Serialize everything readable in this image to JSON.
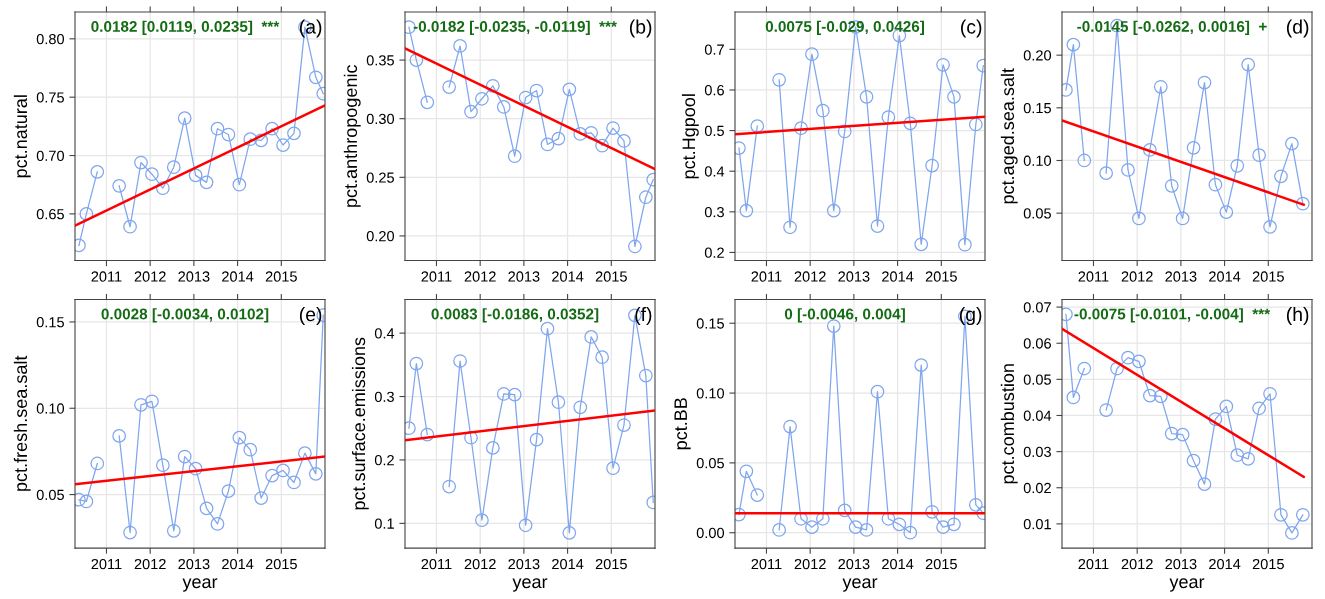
{
  "chart_data": [
    {
      "type": "line",
      "ylabel": "pct.natural",
      "x": [
        2010.37,
        2010.54,
        2010.79,
        2011.04,
        2011.29,
        2011.54,
        2011.79,
        2012.04,
        2012.29,
        2012.54,
        2012.79,
        2013.04,
        2013.29,
        2013.54,
        2013.79,
        2014.04,
        2014.29,
        2014.54,
        2014.79,
        2015.04,
        2015.29,
        2015.54,
        2015.79,
        2015.96
      ],
      "xlim": [
        2010.28,
        2016.0
      ],
      "xticks": [
        2011,
        2012,
        2013,
        2014,
        2015
      ],
      "ylim": [
        0.61,
        0.823
      ],
      "yticks": [
        {
          "value": 0.65,
          "label": "0.65"
        },
        {
          "value": 0.7,
          "label": "0.70"
        },
        {
          "value": 0.75,
          "label": "0.75"
        },
        {
          "value": 0.8,
          "label": "0.80"
        }
      ],
      "grid": true,
      "tick_labels": "y_and_x",
      "annotations": [
        "0.0182 [0.0119, 0.0235]  ***",
        "(a)"
      ],
      "series": [
        {
          "color": "#7fa6ee",
          "marker": "circle",
          "values": [
            0.623,
            0.65,
            0.686,
            null,
            0.674,
            0.639,
            0.694,
            0.684,
            0.672,
            0.69,
            0.732,
            0.683,
            0.677,
            0.723,
            0.718,
            0.675,
            0.714,
            0.713,
            0.723,
            0.709,
            0.719,
            0.81,
            0.767,
            0.753
          ]
        },
        {
          "color": "#ff0000",
          "x": [
            2010.28,
            2016.0
          ],
          "values": [
            0.64,
            0.743
          ]
        }
      ]
    },
    {
      "type": "line",
      "ylabel": "pct.anthropogenic",
      "x": [
        2010.37,
        2010.54,
        2010.79,
        2011.04,
        2011.29,
        2011.54,
        2011.79,
        2012.04,
        2012.29,
        2012.54,
        2012.79,
        2013.04,
        2013.29,
        2013.54,
        2013.79,
        2014.04,
        2014.29,
        2014.54,
        2014.79,
        2015.04,
        2015.29,
        2015.54,
        2015.79,
        2015.96
      ],
      "xlim": [
        2010.28,
        2016.0
      ],
      "xticks": [
        2011,
        2012,
        2013,
        2014,
        2015
      ],
      "ylim": [
        0.179,
        0.391
      ],
      "yticks": [
        {
          "value": 0.2,
          "label": "0.20"
        },
        {
          "value": 0.25,
          "label": "0.25"
        },
        {
          "value": 0.3,
          "label": "0.30"
        },
        {
          "value": 0.35,
          "label": "0.35"
        }
      ],
      "grid": true,
      "annotations": [
        "-0.0182 [-0.0235, -0.0119]  ***",
        "(b)"
      ],
      "series": [
        {
          "color": "#7fa6ee",
          "marker": "circle",
          "values": [
            0.378,
            0.35,
            0.314,
            null,
            0.327,
            0.362,
            0.306,
            0.317,
            0.328,
            0.31,
            0.268,
            0.318,
            0.324,
            0.278,
            0.283,
            0.325,
            0.287,
            0.288,
            0.277,
            0.292,
            0.281,
            0.191,
            0.233,
            0.248
          ]
        },
        {
          "color": "#ff0000",
          "x": [
            2010.28,
            2016.0
          ],
          "values": [
            0.36,
            0.257
          ]
        }
      ]
    },
    {
      "type": "line",
      "ylabel": "pct.Hgpool",
      "x": [
        2010.37,
        2010.54,
        2010.79,
        2011.04,
        2011.29,
        2011.54,
        2011.79,
        2012.04,
        2012.29,
        2012.54,
        2012.79,
        2013.04,
        2013.29,
        2013.54,
        2013.79,
        2014.04,
        2014.29,
        2014.54,
        2014.79,
        2015.04,
        2015.29,
        2015.54,
        2015.79,
        2015.96
      ],
      "xlim": [
        2010.28,
        2016.0
      ],
      "xticks": [
        2011,
        2012,
        2013,
        2014,
        2015
      ],
      "ylim": [
        0.18,
        0.792
      ],
      "yticks": [
        0.2,
        0.3,
        0.4,
        0.5,
        0.6,
        0.7
      ],
      "grid": true,
      "annotations": [
        "0.0075 [-0.029, 0.0426]",
        "(c)"
      ],
      "series": [
        {
          "color": "#7fa6ee",
          "marker": "circle",
          "values": [
            0.457,
            0.303,
            0.511,
            null,
            0.625,
            0.262,
            0.506,
            0.688,
            0.549,
            0.303,
            0.498,
            0.755,
            0.583,
            0.265,
            0.533,
            0.734,
            0.518,
            0.22,
            0.414,
            0.662,
            0.583,
            0.219,
            0.515,
            0.66
          ]
        },
        {
          "color": "#ff0000",
          "x": [
            2010.28,
            2016.0
          ],
          "values": [
            0.491,
            0.534
          ]
        }
      ]
    },
    {
      "type": "line",
      "ylabel": "pct.aged.sea.salt",
      "x": [
        2010.37,
        2010.54,
        2010.79,
        2011.04,
        2011.29,
        2011.54,
        2011.79,
        2012.04,
        2012.29,
        2012.54,
        2012.79,
        2013.04,
        2013.29,
        2013.54,
        2013.79,
        2014.04,
        2014.29,
        2014.54,
        2014.79,
        2015.04,
        2015.29,
        2015.54,
        2015.79
      ],
      "xlim": [
        2010.28,
        2016.0
      ],
      "xticks": [
        2011,
        2012,
        2013,
        2014,
        2015
      ],
      "ylim": [
        0.005,
        0.241
      ],
      "yticks": [
        {
          "value": 0.05,
          "label": "0.05"
        },
        {
          "value": 0.1,
          "label": "0.10"
        },
        {
          "value": 0.15,
          "label": "0.15"
        },
        {
          "value": 0.2,
          "label": "0.20"
        }
      ],
      "grid": true,
      "annotations": [
        "-0.0145 [-0.0262, 0.0016]  +",
        "(d)"
      ],
      "series": [
        {
          "color": "#7fa6ee",
          "marker": "circle",
          "values": [
            0.167,
            0.21,
            0.1,
            null,
            0.088,
            0.228,
            0.091,
            0.045,
            0.11,
            0.17,
            0.076,
            0.045,
            0.112,
            0.174,
            0.077,
            0.051,
            0.095,
            0.191,
            0.105,
            0.037,
            0.085,
            0.116,
            0.059
          ]
        },
        {
          "color": "#ff0000",
          "x": [
            2010.28,
            2015.81
          ],
          "values": [
            0.138,
            0.058
          ]
        }
      ]
    },
    {
      "type": "line",
      "ylabel": "pct.fresh.sea.salt",
      "xlabel": "year",
      "x": [
        2010.37,
        2010.54,
        2010.79,
        2011.04,
        2011.29,
        2011.54,
        2011.79,
        2012.04,
        2012.29,
        2012.54,
        2012.79,
        2013.04,
        2013.29,
        2013.54,
        2013.79,
        2014.04,
        2014.29,
        2014.54,
        2014.79,
        2015.04,
        2015.29,
        2015.54,
        2015.79,
        2015.96
      ],
      "xlim": [
        2010.28,
        2016.0
      ],
      "xticks": [
        2011,
        2012,
        2013,
        2014,
        2015
      ],
      "ylim": [
        0.019,
        0.163
      ],
      "yticks": [
        {
          "value": 0.05,
          "label": "0.05"
        },
        {
          "value": 0.1,
          "label": "0.10"
        },
        {
          "value": 0.15,
          "label": "0.15"
        }
      ],
      "grid": true,
      "annotations": [
        "0.0028 [-0.0034, 0.0102]",
        "(e)"
      ],
      "series": [
        {
          "color": "#7fa6ee",
          "marker": "circle",
          "values": [
            0.047,
            0.046,
            0.068,
            null,
            0.084,
            0.028,
            0.102,
            0.104,
            0.067,
            0.029,
            0.072,
            0.065,
            0.042,
            0.033,
            0.052,
            0.083,
            0.076,
            0.048,
            0.061,
            0.064,
            0.057,
            0.074,
            0.062,
            0.154
          ]
        },
        {
          "color": "#ff0000",
          "x": [
            2010.28,
            2016.0
          ],
          "values": [
            0.056,
            0.072
          ]
        }
      ]
    },
    {
      "type": "line",
      "ylabel": "pct.surface.emissions",
      "xlabel": "year",
      "x": [
        2010.37,
        2010.54,
        2010.79,
        2011.04,
        2011.29,
        2011.54,
        2011.79,
        2012.04,
        2012.29,
        2012.54,
        2012.79,
        2013.04,
        2013.29,
        2013.54,
        2013.79,
        2014.04,
        2014.29,
        2014.54,
        2014.79,
        2015.04,
        2015.29,
        2015.54,
        2015.79,
        2015.96
      ],
      "xlim": [
        2010.28,
        2016.0
      ],
      "xticks": [
        2011,
        2012,
        2013,
        2014,
        2015
      ],
      "ylim": [
        0.061,
        0.453
      ],
      "yticks": [
        0.1,
        0.2,
        0.3,
        0.4
      ],
      "grid": true,
      "annotations": [
        "0.0083 [-0.0186, 0.0352]",
        "(f)"
      ],
      "series": [
        {
          "color": "#7fa6ee",
          "marker": "circle",
          "values": [
            0.25,
            0.352,
            0.24,
            null,
            0.158,
            0.356,
            0.235,
            0.105,
            0.219,
            0.304,
            0.303,
            0.097,
            0.232,
            0.407,
            0.291,
            0.085,
            0.283,
            0.394,
            0.362,
            0.187,
            0.255,
            0.428,
            0.333,
            0.133
          ]
        },
        {
          "color": "#ff0000",
          "x": [
            2010.28,
            2016.0
          ],
          "values": [
            0.231,
            0.278
          ]
        }
      ]
    },
    {
      "type": "line",
      "ylabel": "pct.BB",
      "xlabel": "year",
      "x": [
        2010.37,
        2010.54,
        2010.79,
        2011.04,
        2011.29,
        2011.54,
        2011.79,
        2012.04,
        2012.29,
        2012.54,
        2012.79,
        2013.04,
        2013.29,
        2013.54,
        2013.79,
        2014.04,
        2014.29,
        2014.54,
        2014.79,
        2015.04,
        2015.29,
        2015.54,
        2015.79,
        2015.96
      ],
      "xlim": [
        2010.28,
        2016.0
      ],
      "xticks": [
        2011,
        2012,
        2013,
        2014,
        2015
      ],
      "ylim": [
        -0.011,
        0.167
      ],
      "yticks": [
        {
          "value": 0.0,
          "label": "0.00"
        },
        {
          "value": 0.05,
          "label": "0.05"
        },
        {
          "value": 0.1,
          "label": "0.10"
        },
        {
          "value": 0.15,
          "label": "0.15"
        }
      ],
      "grid": true,
      "annotations": [
        "0 [-0.0046, 0.004]",
        "(g)"
      ],
      "series": [
        {
          "color": "#7fa6ee",
          "marker": "circle",
          "values": [
            0.013,
            0.044,
            0.027,
            null,
            0.002,
            0.076,
            0.01,
            0.004,
            0.01,
            0.148,
            0.016,
            0.004,
            0.002,
            0.101,
            0.01,
            0.006,
            0.0,
            0.12,
            0.015,
            0.004,
            0.006,
            0.155,
            0.02,
            0.014
          ]
        },
        {
          "color": "#ff0000",
          "x": [
            2010.28,
            2016.0
          ],
          "values": [
            0.014,
            0.014
          ]
        }
      ]
    },
    {
      "type": "line",
      "ylabel": "pct.combustion",
      "xlabel": "year",
      "x": [
        2010.37,
        2010.54,
        2010.79,
        2011.04,
        2011.29,
        2011.54,
        2011.79,
        2012.04,
        2012.29,
        2012.54,
        2012.79,
        2013.04,
        2013.29,
        2013.54,
        2013.79,
        2014.04,
        2014.29,
        2014.54,
        2014.79,
        2015.04,
        2015.29,
        2015.54,
        2015.79
      ],
      "xlim": [
        2010.28,
        2016.0
      ],
      "xticks": [
        2011,
        2012,
        2013,
        2014,
        2015
      ],
      "ylim": [
        0.0033,
        0.0721
      ],
      "yticks": [
        {
          "value": 0.01,
          "label": "0.01"
        },
        {
          "value": 0.02,
          "label": "0.02"
        },
        {
          "value": 0.03,
          "label": "0.03"
        },
        {
          "value": 0.04,
          "label": "0.04"
        },
        {
          "value": 0.05,
          "label": "0.05"
        },
        {
          "value": 0.06,
          "label": "0.06"
        },
        {
          "value": 0.07,
          "label": "0.07"
        }
      ],
      "grid": true,
      "annotations": [
        "-0.0075 [-0.0101, -0.004]  ***",
        "(h)"
      ],
      "series": [
        {
          "color": "#7fa6ee",
          "marker": "circle",
          "values": [
            0.068,
            0.045,
            0.053,
            null,
            0.0415,
            0.053,
            0.056,
            0.055,
            0.0455,
            0.0453,
            0.035,
            0.0347,
            0.0275,
            0.021,
            0.039,
            0.0425,
            0.029,
            0.028,
            0.042,
            0.046,
            0.0125,
            0.0075,
            0.0125
          ]
        },
        {
          "color": "#ff0000",
          "x": [
            2010.28,
            2015.81
          ],
          "values": [
            0.064,
            0.023
          ]
        }
      ]
    }
  ]
}
